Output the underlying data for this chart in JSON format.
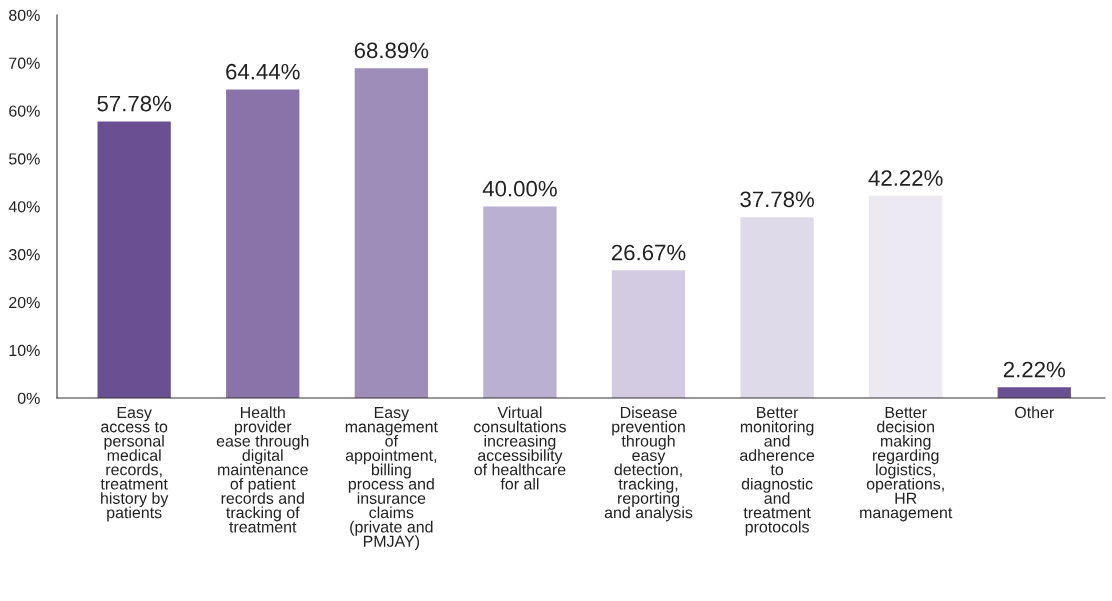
{
  "chart_data": {
    "type": "bar",
    "categories": [
      "Easy\naccess to\npersonal\nmedical\nrecords,\ntreatment\nhistory by\npatients",
      "Health\nprovider\nease through\ndigital\nmaintenance\nof patient\nrecords and\ntracking of\ntreatment",
      "Easy\nmanagement\nof\nappointment,\nbilling\nprocess and\ninsurance\nclaims\n(private and\nPMJAY)",
      "Virtual\nconsultations\nincreasing\naccessibility\nof healthcare\nfor all",
      "Disease\nprevention\nthrough\neasy\ndetection,\ntracking,\nreporting\nand analysis",
      "Better\nmonitoring\nand\nadherence\nto\ndiagnostic\nand\ntreatment\nprotocols",
      "Better\ndecision\nmaking\nregarding\nlogistics,\noperations,\nHR\nmanagement",
      "Other"
    ],
    "values": [
      57.78,
      64.44,
      68.89,
      40.0,
      26.67,
      37.78,
      42.22,
      2.22
    ],
    "value_labels": [
      "57.78%",
      "64.44%",
      "68.89%",
      "40.00%",
      "26.67%",
      "37.78%",
      "42.22%",
      "2.22%"
    ],
    "colors": [
      "#6a5093",
      "#8a73a9",
      "#9f8db9",
      "#bab0d1",
      "#d2cbe1",
      "#dedae9",
      "#ece9f2",
      "#6a5093"
    ],
    "ylim": [
      0,
      80
    ],
    "yticks": [
      {
        "value": 0,
        "label": "0%"
      },
      {
        "value": 10,
        "label": "10%"
      },
      {
        "value": 20,
        "label": "20%"
      },
      {
        "value": 30,
        "label": "30%"
      },
      {
        "value": 40,
        "label": "40%"
      },
      {
        "value": 50,
        "label": "50%"
      },
      {
        "value": 60,
        "label": "60%"
      },
      {
        "value": 70,
        "label": "70%"
      },
      {
        "value": 80,
        "label": "80%"
      }
    ],
    "grid": false
  }
}
